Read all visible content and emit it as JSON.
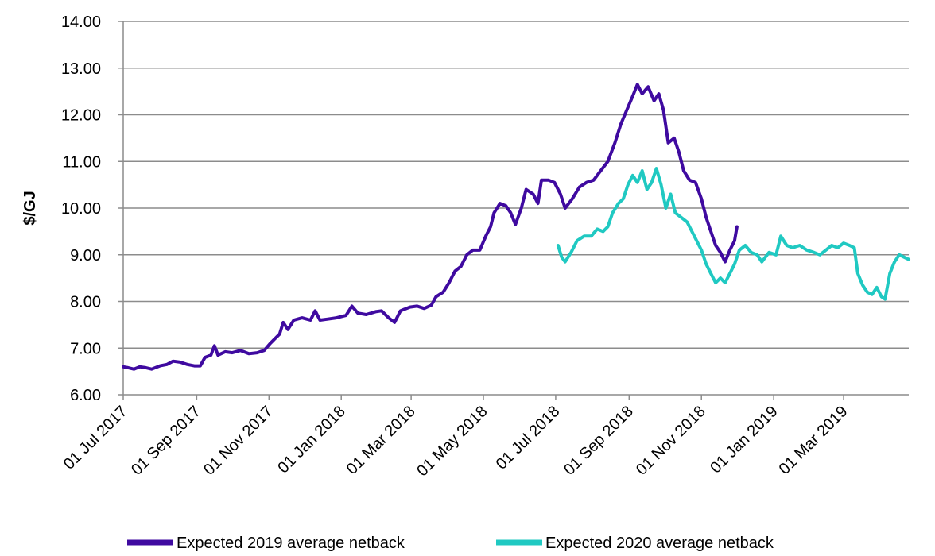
{
  "chart_data": {
    "type": "line",
    "title": "",
    "xlabel": "",
    "ylabel": "$/GJ",
    "ylim": [
      6.0,
      14.0
    ],
    "xlim": [
      "2017-07-01",
      "2019-04-25"
    ],
    "y_ticks": [
      "6.00",
      "7.00",
      "8.00",
      "9.00",
      "10.00",
      "11.00",
      "12.00",
      "13.00",
      "14.00"
    ],
    "x_ticks": [
      {
        "date": "2017-07-01",
        "label": "01 Jul 2017"
      },
      {
        "date": "2017-09-01",
        "label": "01 Sep 2017"
      },
      {
        "date": "2017-11-01",
        "label": "01 Nov 2017"
      },
      {
        "date": "2018-01-01",
        "label": "01 Jan 2018"
      },
      {
        "date": "2018-03-01",
        "label": "01 Mar 2018"
      },
      {
        "date": "2018-05-01",
        "label": "01 May 2018"
      },
      {
        "date": "2018-07-01",
        "label": "01 Jul 2018"
      },
      {
        "date": "2018-09-01",
        "label": "01 Sep 2018"
      },
      {
        "date": "2018-11-01",
        "label": "01 Nov 2018"
      },
      {
        "date": "2019-01-01",
        "label": "01 Jan 2019"
      },
      {
        "date": "2019-03-01",
        "label": "01 Mar 2019"
      }
    ],
    "grid": "horizontal",
    "legend_position": "bottom",
    "series": [
      {
        "name": "Expected 2019 average netback",
        "color": "#3f0aa0",
        "points": [
          [
            "2017-07-01",
            6.6
          ],
          [
            "2017-07-05",
            6.58
          ],
          [
            "2017-07-10",
            6.55
          ],
          [
            "2017-07-15",
            6.6
          ],
          [
            "2017-07-20",
            6.58
          ],
          [
            "2017-07-25",
            6.55
          ],
          [
            "2017-08-01",
            6.62
          ],
          [
            "2017-08-07",
            6.65
          ],
          [
            "2017-08-12",
            6.72
          ],
          [
            "2017-08-18",
            6.7
          ],
          [
            "2017-08-24",
            6.65
          ],
          [
            "2017-08-30",
            6.62
          ],
          [
            "2017-09-04",
            6.62
          ],
          [
            "2017-09-08",
            6.8
          ],
          [
            "2017-09-13",
            6.85
          ],
          [
            "2017-09-16",
            7.05
          ],
          [
            "2017-09-19",
            6.85
          ],
          [
            "2017-09-25",
            6.92
          ],
          [
            "2017-10-01",
            6.9
          ],
          [
            "2017-10-08",
            6.95
          ],
          [
            "2017-10-15",
            6.88
          ],
          [
            "2017-10-22",
            6.9
          ],
          [
            "2017-10-28",
            6.95
          ],
          [
            "2017-11-02",
            7.1
          ],
          [
            "2017-11-06",
            7.2
          ],
          [
            "2017-11-10",
            7.3
          ],
          [
            "2017-11-13",
            7.55
          ],
          [
            "2017-11-17",
            7.4
          ],
          [
            "2017-11-22",
            7.6
          ],
          [
            "2017-11-29",
            7.65
          ],
          [
            "2017-12-06",
            7.6
          ],
          [
            "2017-12-10",
            7.8
          ],
          [
            "2017-12-14",
            7.6
          ],
          [
            "2017-12-20",
            7.62
          ],
          [
            "2017-12-28",
            7.65
          ],
          [
            "2018-01-05",
            7.7
          ],
          [
            "2018-01-10",
            7.9
          ],
          [
            "2018-01-15",
            7.75
          ],
          [
            "2018-01-22",
            7.72
          ],
          [
            "2018-01-30",
            7.78
          ],
          [
            "2018-02-04",
            7.8
          ],
          [
            "2018-02-10",
            7.65
          ],
          [
            "2018-02-15",
            7.55
          ],
          [
            "2018-02-20",
            7.8
          ],
          [
            "2018-02-28",
            7.88
          ],
          [
            "2018-03-06",
            7.9
          ],
          [
            "2018-03-12",
            7.85
          ],
          [
            "2018-03-18",
            7.92
          ],
          [
            "2018-03-22",
            8.1
          ],
          [
            "2018-03-28",
            8.2
          ],
          [
            "2018-04-02",
            8.4
          ],
          [
            "2018-04-07",
            8.65
          ],
          [
            "2018-04-12",
            8.75
          ],
          [
            "2018-04-17",
            9.0
          ],
          [
            "2018-04-22",
            9.1
          ],
          [
            "2018-04-28",
            9.1
          ],
          [
            "2018-05-03",
            9.4
          ],
          [
            "2018-05-07",
            9.6
          ],
          [
            "2018-05-10",
            9.9
          ],
          [
            "2018-05-15",
            10.1
          ],
          [
            "2018-05-20",
            10.05
          ],
          [
            "2018-05-24",
            9.9
          ],
          [
            "2018-05-28",
            9.65
          ],
          [
            "2018-06-02",
            10.0
          ],
          [
            "2018-06-06",
            10.4
          ],
          [
            "2018-06-12",
            10.3
          ],
          [
            "2018-06-16",
            10.1
          ],
          [
            "2018-06-19",
            10.6
          ],
          [
            "2018-06-25",
            10.6
          ],
          [
            "2018-06-30",
            10.55
          ],
          [
            "2018-07-05",
            10.3
          ],
          [
            "2018-07-09",
            10.0
          ],
          [
            "2018-07-15",
            10.2
          ],
          [
            "2018-07-21",
            10.45
          ],
          [
            "2018-07-27",
            10.55
          ],
          [
            "2018-08-02",
            10.6
          ],
          [
            "2018-08-08",
            10.8
          ],
          [
            "2018-08-14",
            11.0
          ],
          [
            "2018-08-20",
            11.4
          ],
          [
            "2018-08-25",
            11.8
          ],
          [
            "2018-08-30",
            12.1
          ],
          [
            "2018-09-04",
            12.4
          ],
          [
            "2018-09-08",
            12.65
          ],
          [
            "2018-09-12",
            12.45
          ],
          [
            "2018-09-17",
            12.6
          ],
          [
            "2018-09-22",
            12.3
          ],
          [
            "2018-09-26",
            12.45
          ],
          [
            "2018-09-30",
            12.1
          ],
          [
            "2018-10-04",
            11.4
          ],
          [
            "2018-10-09",
            11.5
          ],
          [
            "2018-10-13",
            11.2
          ],
          [
            "2018-10-17",
            10.8
          ],
          [
            "2018-10-22",
            10.6
          ],
          [
            "2018-10-27",
            10.55
          ],
          [
            "2018-11-01",
            10.2
          ],
          [
            "2018-11-05",
            9.8
          ],
          [
            "2018-11-09",
            9.5
          ],
          [
            "2018-11-13",
            9.2
          ],
          [
            "2018-11-17",
            9.05
          ],
          [
            "2018-11-21",
            8.85
          ],
          [
            "2018-11-25",
            9.1
          ],
          [
            "2018-11-29",
            9.3
          ],
          [
            "2018-12-01",
            9.6
          ]
        ]
      },
      {
        "name": "Expected 2020 average netback",
        "color": "#20c9c2",
        "points": [
          [
            "2018-07-03",
            9.2
          ],
          [
            "2018-07-06",
            8.95
          ],
          [
            "2018-07-09",
            8.85
          ],
          [
            "2018-07-14",
            9.05
          ],
          [
            "2018-07-19",
            9.3
          ],
          [
            "2018-07-25",
            9.4
          ],
          [
            "2018-07-31",
            9.4
          ],
          [
            "2018-08-05",
            9.55
          ],
          [
            "2018-08-10",
            9.5
          ],
          [
            "2018-08-14",
            9.6
          ],
          [
            "2018-08-18",
            9.9
          ],
          [
            "2018-08-23",
            10.1
          ],
          [
            "2018-08-27",
            10.2
          ],
          [
            "2018-08-31",
            10.5
          ],
          [
            "2018-09-04",
            10.7
          ],
          [
            "2018-09-08",
            10.55
          ],
          [
            "2018-09-12",
            10.8
          ],
          [
            "2018-09-16",
            10.4
          ],
          [
            "2018-09-20",
            10.55
          ],
          [
            "2018-09-24",
            10.85
          ],
          [
            "2018-09-28",
            10.5
          ],
          [
            "2018-10-02",
            10.0
          ],
          [
            "2018-10-06",
            10.3
          ],
          [
            "2018-10-10",
            9.9
          ],
          [
            "2018-10-15",
            9.8
          ],
          [
            "2018-10-20",
            9.7
          ],
          [
            "2018-10-26",
            9.4
          ],
          [
            "2018-11-01",
            9.1
          ],
          [
            "2018-11-05",
            8.8
          ],
          [
            "2018-11-09",
            8.6
          ],
          [
            "2018-11-13",
            8.4
          ],
          [
            "2018-11-17",
            8.5
          ],
          [
            "2018-11-21",
            8.4
          ],
          [
            "2018-11-25",
            8.6
          ],
          [
            "2018-11-29",
            8.8
          ],
          [
            "2018-12-03",
            9.1
          ],
          [
            "2018-12-08",
            9.2
          ],
          [
            "2018-12-13",
            9.05
          ],
          [
            "2018-12-18",
            9.0
          ],
          [
            "2018-12-22",
            8.85
          ],
          [
            "2018-12-28",
            9.05
          ],
          [
            "2019-01-03",
            9.0
          ],
          [
            "2019-01-07",
            9.4
          ],
          [
            "2019-01-12",
            9.2
          ],
          [
            "2019-01-17",
            9.15
          ],
          [
            "2019-01-23",
            9.2
          ],
          [
            "2019-01-29",
            9.1
          ],
          [
            "2019-02-04",
            9.05
          ],
          [
            "2019-02-09",
            9.0
          ],
          [
            "2019-02-14",
            9.1
          ],
          [
            "2019-02-19",
            9.2
          ],
          [
            "2019-02-24",
            9.15
          ],
          [
            "2019-03-01",
            9.25
          ],
          [
            "2019-03-06",
            9.2
          ],
          [
            "2019-03-10",
            9.15
          ],
          [
            "2019-03-13",
            8.6
          ],
          [
            "2019-03-17",
            8.35
          ],
          [
            "2019-03-21",
            8.2
          ],
          [
            "2019-03-25",
            8.15
          ],
          [
            "2019-03-29",
            8.3
          ],
          [
            "2019-04-02",
            8.1
          ],
          [
            "2019-04-05",
            8.05
          ],
          [
            "2019-04-09",
            8.6
          ],
          [
            "2019-04-13",
            8.85
          ],
          [
            "2019-04-17",
            9.0
          ],
          [
            "2019-04-21",
            8.95
          ],
          [
            "2019-04-25",
            8.9
          ]
        ]
      }
    ]
  }
}
